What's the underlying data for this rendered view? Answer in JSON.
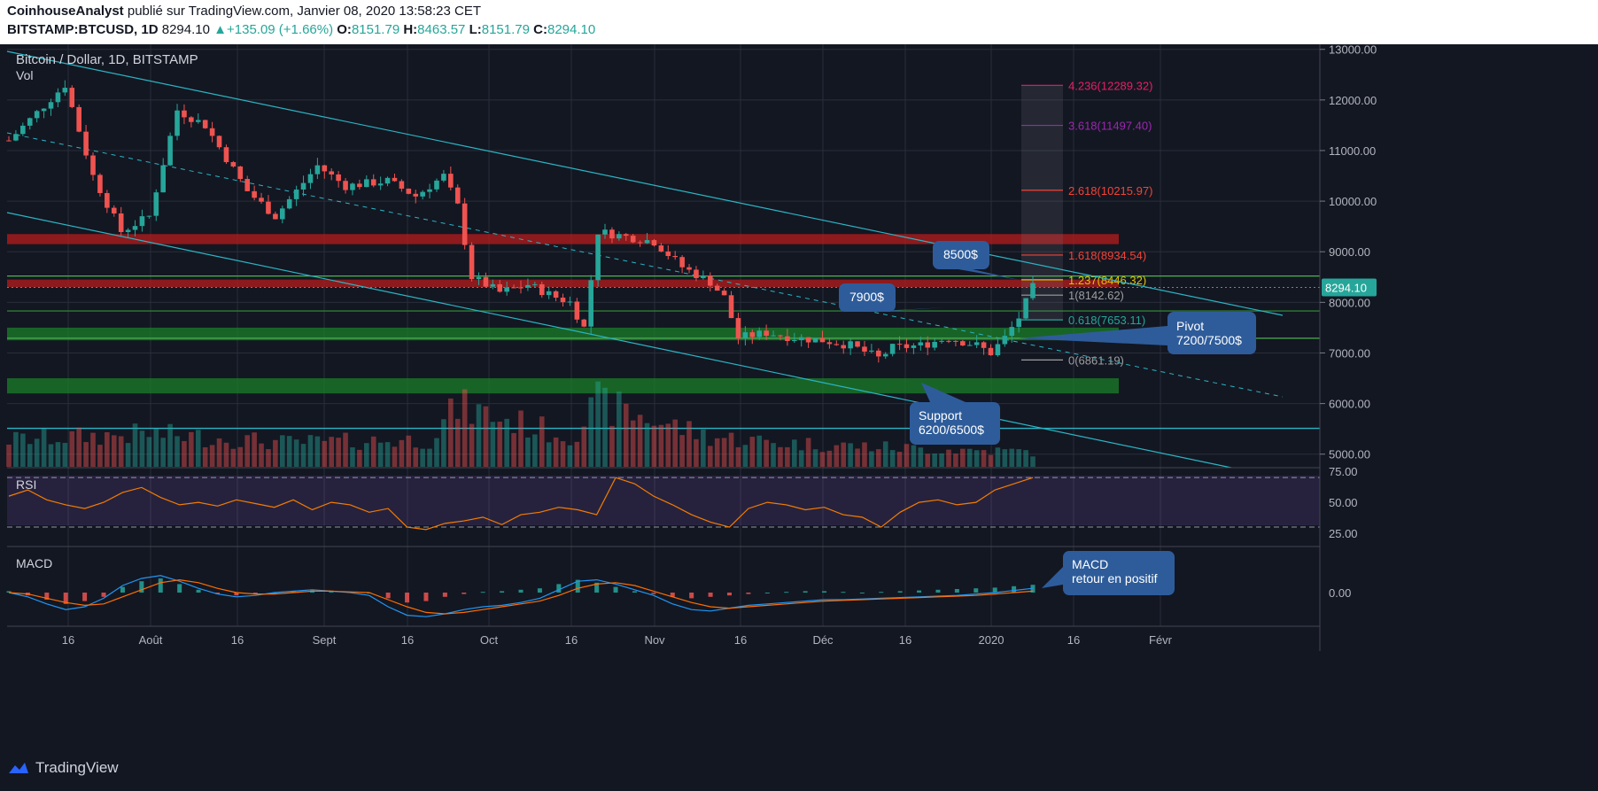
{
  "header": {
    "author": "CoinhouseAnalyst",
    "published_text": "publié sur TradingView.com, Janvier 08, 2020 13:58:23 CET",
    "symbol": "BITSTAMP:BTCUSD, 1D",
    "last": "8294.10",
    "change": "+135.09 (+1.66%)",
    "o_label": "O:",
    "o": "8151.79",
    "h_label": "H:",
    "h": "8463.57",
    "l_label": "L:",
    "l": "8151.79",
    "c_label": "C:",
    "c": "8294.10"
  },
  "chart_info": {
    "title": "Bitcoin / Dollar, 1D, BITSTAMP",
    "vol_label": "Vol",
    "price_badge": "8294.10"
  },
  "footer": {
    "brand": "TradingView"
  },
  "colors": {
    "bg": "#131722",
    "grid": "#2a2e39",
    "up": "#26a69a",
    "down": "#ef5350",
    "rsi_line": "#f57c00",
    "macd_line": "#2196f3",
    "signal_line": "#ff6d00",
    "channel": "#2bb5c4",
    "callout": "#2e5c9a"
  },
  "chart_data": [
    {
      "type": "candlestick",
      "title": "Bitcoin / Dollar, 1D, BITSTAMP",
      "y_ticks": [
        5000,
        6000,
        7000,
        8000,
        9000,
        10000,
        11000,
        12000,
        13000
      ],
      "y_tick_labels": [
        "5000.00",
        "6000.00",
        "7000.00",
        "8000.00",
        "9000.00",
        "10000.00",
        "11000.00",
        "12000.00",
        "13000.00"
      ],
      "ylim": [
        4750,
        13100
      ],
      "x_tick_labels": [
        "16",
        "Août",
        "16",
        "Sept",
        "16",
        "Oct",
        "16",
        "Nov",
        "16",
        "Déc",
        "16",
        "2020",
        "16",
        "Févr"
      ],
      "price_path": [
        [
          0,
          11200
        ],
        [
          8,
          12300
        ],
        [
          12,
          10500
        ],
        [
          16,
          9400
        ],
        [
          20,
          9700
        ],
        [
          24,
          11800
        ],
        [
          28,
          11500
        ],
        [
          34,
          10200
        ],
        [
          38,
          9700
        ],
        [
          44,
          10700
        ],
        [
          48,
          10300
        ],
        [
          54,
          10400
        ],
        [
          58,
          10100
        ],
        [
          62,
          10500
        ],
        [
          64,
          9900
        ],
        [
          66,
          8500
        ],
        [
          70,
          8200
        ],
        [
          74,
          8350
        ],
        [
          78,
          8100
        ],
        [
          80,
          8000
        ],
        [
          82,
          7500
        ],
        [
          84,
          9400
        ],
        [
          88,
          9300
        ],
        [
          92,
          9200
        ],
        [
          96,
          8700
        ],
        [
          100,
          8400
        ],
        [
          102,
          8100
        ],
        [
          104,
          7300
        ],
        [
          108,
          7400
        ],
        [
          112,
          7300
        ],
        [
          116,
          7250
        ],
        [
          120,
          7150
        ],
        [
          124,
          6900
        ],
        [
          126,
          7100
        ],
        [
          130,
          7150
        ],
        [
          134,
          7300
        ],
        [
          138,
          7150
        ],
        [
          140,
          7000
        ],
        [
          142,
          7300
        ],
        [
          144,
          7700
        ],
        [
          146,
          8295
        ]
      ],
      "volume_path": [
        [
          0,
          0.45
        ],
        [
          20,
          0.55
        ],
        [
          40,
          0.4
        ],
        [
          60,
          0.45
        ],
        [
          64,
          1.0
        ],
        [
          80,
          0.5
        ],
        [
          84,
          1.05
        ],
        [
          100,
          0.5
        ],
        [
          110,
          0.4
        ],
        [
          130,
          0.3
        ],
        [
          146,
          0.25
        ]
      ],
      "horizontal_zones": [
        {
          "low": 9150,
          "high": 9350,
          "color": "#b71c1c"
        },
        {
          "low": 8300,
          "high": 8450,
          "color": "#b71c1c"
        },
        {
          "low": 7250,
          "high": 7500,
          "color": "#1b7f2a"
        },
        {
          "low": 6200,
          "high": 6500,
          "color": "#1b7f2a"
        }
      ],
      "fibonacci": [
        {
          "label": "4.236(12289.32)",
          "value": 12289.32,
          "color": "#e91e63"
        },
        {
          "label": "3.618(11497.40)",
          "value": 11497.4,
          "color": "#9c27b0"
        },
        {
          "label": "2.618(10215.97)",
          "value": 10215.97,
          "color": "#f44336"
        },
        {
          "label": "1.618(8934.54)",
          "value": 8934.54,
          "color": "#f44336"
        },
        {
          "label": "1.237(8446.32)",
          "value": 8446.32,
          "color": "#e6c200"
        },
        {
          "label": "1(8142.62)",
          "value": 8142.62,
          "color": "#9e9e9e"
        },
        {
          "label": "0.618(7653.11)",
          "value": 7653.11,
          "color": "#26a69a"
        },
        {
          "label": "0(6861.19)",
          "value": 6861.19,
          "color": "#9e9e9e"
        }
      ],
      "annotations": [
        {
          "lines": [
            "8500$"
          ],
          "target_value": 8446
        },
        {
          "lines": [
            "7900$"
          ],
          "target_value": 7900
        },
        {
          "lines": [
            "Pivot",
            "7200/7500$"
          ],
          "target_value": 7350
        },
        {
          "lines": [
            "Support",
            "6200/6500$"
          ],
          "target_value": 6400
        }
      ]
    },
    {
      "type": "line",
      "title": "RSI",
      "ylim": [
        15,
        78
      ],
      "y_ticks": [
        25,
        50,
        75
      ],
      "y_tick_labels": [
        "25.00",
        "50.00",
        "75.00"
      ],
      "reference_lines": [
        30,
        70
      ],
      "series": [
        {
          "values": [
            55,
            60,
            52,
            48,
            45,
            50,
            58,
            62,
            54,
            48,
            50,
            47,
            52,
            49,
            46,
            52,
            44,
            50,
            48,
            42,
            45,
            30,
            28,
            33,
            35,
            38,
            32,
            40,
            42,
            46,
            44,
            40,
            70,
            65,
            55,
            48,
            40,
            34,
            30,
            45,
            50,
            48,
            44,
            46,
            40,
            38,
            30,
            42,
            50,
            52,
            48,
            50,
            60,
            65,
            70
          ]
        }
      ]
    },
    {
      "type": "bar",
      "title": "MACD",
      "y_ticks": [
        0
      ],
      "y_tick_labels": [
        "0.00"
      ],
      "histogram": [
        0.1,
        -0.2,
        -0.5,
        -0.8,
        -0.6,
        -0.3,
        0.4,
        0.8,
        1.0,
        0.6,
        0.2,
        -0.1,
        -0.2,
        -0.1,
        0.0,
        0.1,
        0.15,
        0.1,
        0.05,
        0.0,
        -0.4,
        -0.7,
        -0.6,
        -0.3,
        -0.1,
        0.05,
        0.1,
        0.2,
        0.3,
        0.6,
        0.9,
        0.7,
        0.4,
        0.1,
        -0.1,
        -0.3,
        -0.4,
        -0.3,
        -0.2,
        -0.1,
        0.0,
        0.05,
        0.1,
        0.1,
        0.05,
        0.0,
        0.05,
        0.1,
        0.15,
        0.2,
        0.25,
        0.3,
        0.35,
        0.45,
        0.55
      ],
      "macd_line": [
        0.0,
        -0.3,
        -0.8,
        -1.2,
        -1.0,
        -0.4,
        0.5,
        1.0,
        1.2,
        0.8,
        0.3,
        -0.1,
        -0.3,
        -0.2,
        0.0,
        0.1,
        0.2,
        0.1,
        0.0,
        -0.2,
        -1.0,
        -1.6,
        -1.7,
        -1.5,
        -1.2,
        -1.0,
        -0.9,
        -0.7,
        -0.4,
        0.2,
        0.8,
        0.9,
        0.6,
        0.2,
        -0.2,
        -0.8,
        -1.2,
        -1.3,
        -1.1,
        -0.9,
        -0.8,
        -0.7,
        -0.6,
        -0.5,
        -0.5,
        -0.45,
        -0.4,
        -0.35,
        -0.3,
        -0.25,
        -0.2,
        -0.1,
        0.0,
        0.15,
        0.3
      ],
      "signal_line": [
        0.0,
        -0.1,
        -0.4,
        -0.7,
        -0.9,
        -0.8,
        -0.3,
        0.2,
        0.7,
        0.9,
        0.7,
        0.3,
        0.0,
        -0.1,
        -0.1,
        0.0,
        0.1,
        0.1,
        0.05,
        0.0,
        -0.5,
        -1.0,
        -1.4,
        -1.5,
        -1.4,
        -1.2,
        -1.0,
        -0.8,
        -0.6,
        -0.2,
        0.3,
        0.6,
        0.7,
        0.5,
        0.1,
        -0.3,
        -0.7,
        -1.0,
        -1.1,
        -1.0,
        -0.9,
        -0.8,
        -0.7,
        -0.6,
        -0.55,
        -0.5,
        -0.45,
        -0.4,
        -0.35,
        -0.3,
        -0.25,
        -0.2,
        -0.1,
        0.0,
        0.1
      ],
      "annotation": {
        "lines": [
          "MACD",
          "retour en positif"
        ]
      }
    }
  ]
}
